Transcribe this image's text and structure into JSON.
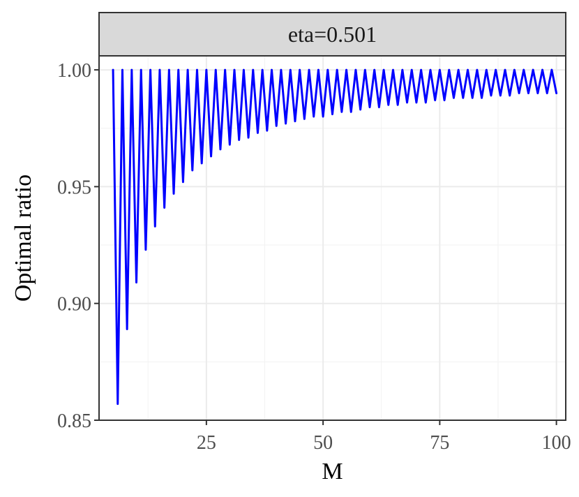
{
  "chart_data": {
    "type": "line",
    "facet_label": "eta=0.501",
    "xlabel": "M",
    "ylabel": "Optimal ratio",
    "xlim": [
      2,
      102
    ],
    "ylim": [
      0.85,
      1.006
    ],
    "x_ticks": [
      25,
      50,
      75,
      100
    ],
    "x_tick_labels": [
      "25",
      "50",
      "75",
      "100"
    ],
    "y_ticks": [
      0.85,
      0.9,
      0.95,
      1.0
    ],
    "y_tick_labels": [
      "0.85",
      "0.90",
      "0.95",
      "1.00"
    ],
    "grid": true,
    "series": [
      {
        "color": "#0000ff",
        "x": [
          5,
          6,
          7,
          8,
          9,
          10,
          11,
          12,
          13,
          14,
          15,
          16,
          17,
          18,
          19,
          20,
          21,
          22,
          23,
          24,
          25,
          26,
          27,
          28,
          29,
          30,
          31,
          32,
          33,
          34,
          35,
          36,
          37,
          38,
          39,
          40,
          41,
          42,
          43,
          44,
          45,
          46,
          47,
          48,
          49,
          50,
          51,
          52,
          53,
          54,
          55,
          56,
          57,
          58,
          59,
          60,
          61,
          62,
          63,
          64,
          65,
          66,
          67,
          68,
          69,
          70,
          71,
          72,
          73,
          74,
          75,
          76,
          77,
          78,
          79,
          80,
          81,
          82,
          83,
          84,
          85,
          86,
          87,
          88,
          89,
          90,
          91,
          92,
          93,
          94,
          95,
          96,
          97,
          98,
          99,
          100
        ],
        "y": [
          1.0,
          0.857,
          1.0,
          0.889,
          1.0,
          0.909,
          1.0,
          0.923,
          1.0,
          0.933,
          1.0,
          0.941,
          1.0,
          0.947,
          1.0,
          0.952,
          1.0,
          0.957,
          1.0,
          0.96,
          1.0,
          0.963,
          1.0,
          0.966,
          1.0,
          0.968,
          1.0,
          0.97,
          1.0,
          0.971,
          1.0,
          0.973,
          1.0,
          0.974,
          1.0,
          0.976,
          1.0,
          0.977,
          1.0,
          0.978,
          1.0,
          0.979,
          1.0,
          0.98,
          1.0,
          0.98,
          1.0,
          0.981,
          1.0,
          0.982,
          1.0,
          0.982,
          1.0,
          0.983,
          1.0,
          0.984,
          1.0,
          0.984,
          1.0,
          0.985,
          1.0,
          0.985,
          1.0,
          0.986,
          1.0,
          0.986,
          1.0,
          0.986,
          1.0,
          0.987,
          1.0,
          0.987,
          1.0,
          0.988,
          1.0,
          0.988,
          1.0,
          0.988,
          1.0,
          0.988,
          1.0,
          0.989,
          1.0,
          0.989,
          1.0,
          0.989,
          1.0,
          0.99,
          1.0,
          0.99,
          1.0,
          0.99,
          1.0,
          0.99,
          1.0,
          0.99
        ]
      }
    ]
  }
}
